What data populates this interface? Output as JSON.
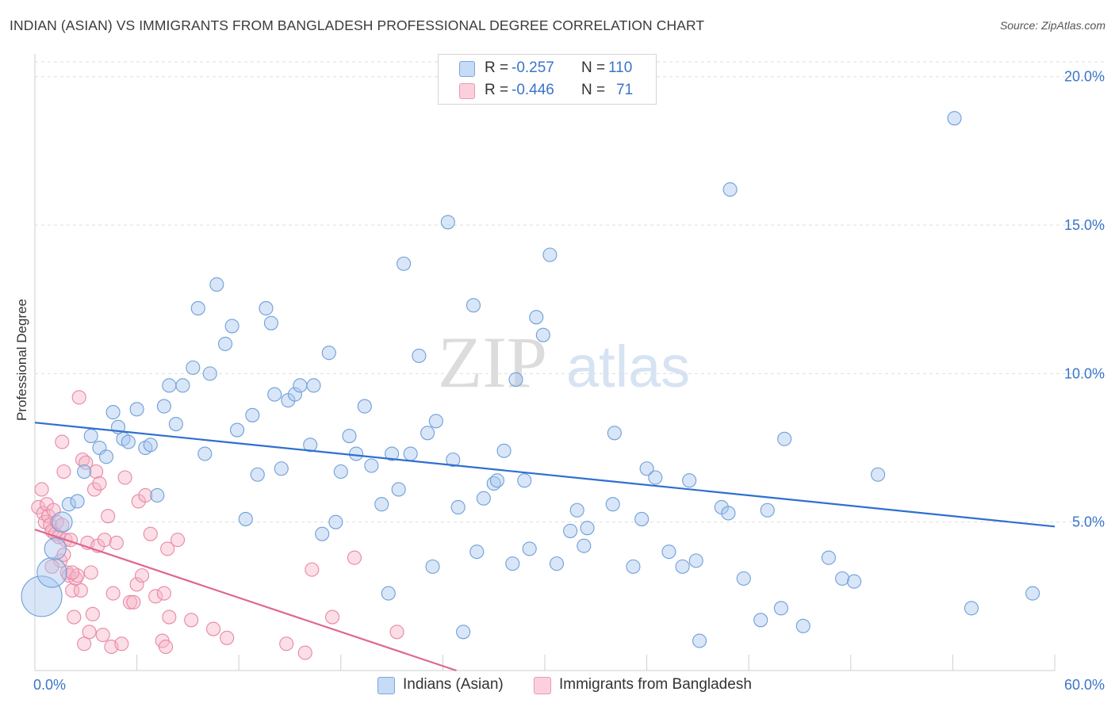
{
  "title": "INDIAN (ASIAN) VS IMMIGRANTS FROM BANGLADESH PROFESSIONAL DEGREE CORRELATION CHART",
  "source": "Source: ZipAtlas.com",
  "watermark": {
    "zip": "ZIP",
    "atlas": "atlas"
  },
  "legend": {
    "r_label": "R =",
    "n_label": "N =",
    "rows": [
      {
        "r": "-0.257",
        "n": "110",
        "color": "#a8c8f0"
      },
      {
        "r": "-0.446",
        "n": "71",
        "color": "#f7b6c8"
      }
    ]
  },
  "colors": {
    "blue_fill": "#a8c8f0",
    "blue_stroke": "#6f9fd8",
    "blue_line": "#2f6fd0",
    "pink_fill": "#f7b6c8",
    "pink_stroke": "#e888a6",
    "pink_line": "#e0678f",
    "tick_label": "#3a74c9"
  },
  "chart_data": {
    "type": "scatter",
    "title": "INDIAN (ASIAN) VS IMMIGRANTS FROM BANGLADESH PROFESSIONAL DEGREE CORRELATION CHART",
    "xlabel": "",
    "ylabel": "Professional Degree",
    "xlim": [
      0,
      60
    ],
    "ylim": [
      0,
      20.5
    ],
    "x_tick_labels": {
      "left": "0.0%",
      "right": "60.0%"
    },
    "y_ticks": [
      {
        "value": 5,
        "label": "5.0%"
      },
      {
        "value": 10,
        "label": "10.0%"
      },
      {
        "value": 15,
        "label": "15.0%"
      },
      {
        "value": 20,
        "label": "20.0%"
      }
    ],
    "grid": "horizontal dashed",
    "legend_position": "top-center",
    "series": [
      {
        "name": "Indians (Asian)",
        "r": -0.257,
        "n": 110,
        "trend": {
          "x": [
            0,
            60
          ],
          "y": [
            8.35,
            4.85
          ]
        },
        "points": [
          [
            0.4,
            2.5,
            3
          ],
          [
            1.0,
            3.3,
            2.2
          ],
          [
            1.2,
            4.1,
            1.6
          ],
          [
            1.6,
            5.0,
            1.5
          ],
          [
            2.0,
            5.6,
            1
          ],
          [
            2.5,
            5.7,
            1
          ],
          [
            2.9,
            6.7,
            1
          ],
          [
            3.3,
            7.9,
            1
          ],
          [
            3.8,
            7.5,
            1
          ],
          [
            4.2,
            7.2,
            1
          ],
          [
            4.6,
            8.7,
            1
          ],
          [
            4.9,
            8.2,
            1
          ],
          [
            5.2,
            7.8,
            1
          ],
          [
            5.5,
            7.7,
            1
          ],
          [
            6.0,
            8.8,
            1
          ],
          [
            6.5,
            7.5,
            1
          ],
          [
            6.8,
            7.6,
            1
          ],
          [
            7.2,
            5.9,
            1
          ],
          [
            7.6,
            8.9,
            1
          ],
          [
            7.9,
            9.6,
            1
          ],
          [
            8.3,
            8.3,
            1
          ],
          [
            8.7,
            9.6,
            1
          ],
          [
            9.3,
            10.2,
            1
          ],
          [
            9.6,
            12.2,
            1
          ],
          [
            10.0,
            7.3,
            1
          ],
          [
            10.3,
            10.0,
            1
          ],
          [
            10.7,
            13.0,
            1
          ],
          [
            11.2,
            11.0,
            1
          ],
          [
            11.6,
            11.6,
            1
          ],
          [
            11.9,
            8.1,
            1
          ],
          [
            12.4,
            5.1,
            1
          ],
          [
            12.8,
            8.6,
            1
          ],
          [
            13.1,
            6.6,
            1
          ],
          [
            13.6,
            12.2,
            1
          ],
          [
            13.9,
            11.7,
            1
          ],
          [
            14.1,
            9.3,
            1
          ],
          [
            14.5,
            6.8,
            1
          ],
          [
            14.9,
            9.1,
            1
          ],
          [
            15.3,
            9.3,
            1
          ],
          [
            15.6,
            9.6,
            1
          ],
          [
            16.2,
            7.6,
            1
          ],
          [
            16.4,
            9.6,
            1
          ],
          [
            16.9,
            4.6,
            1
          ],
          [
            17.3,
            10.7,
            1
          ],
          [
            17.7,
            5.0,
            1
          ],
          [
            18.0,
            6.7,
            1
          ],
          [
            18.5,
            7.9,
            1
          ],
          [
            18.9,
            7.3,
            1
          ],
          [
            19.4,
            8.9,
            1
          ],
          [
            19.8,
            6.9,
            1
          ],
          [
            20.4,
            5.6,
            1
          ],
          [
            20.8,
            2.6,
            1
          ],
          [
            21.0,
            7.3,
            1
          ],
          [
            21.4,
            6.1,
            1
          ],
          [
            21.7,
            13.7,
            1
          ],
          [
            22.1,
            7.3,
            1
          ],
          [
            22.6,
            10.6,
            1
          ],
          [
            23.1,
            8.0,
            1
          ],
          [
            23.4,
            3.5,
            1
          ],
          [
            23.6,
            8.4,
            1
          ],
          [
            24.3,
            15.1,
            1
          ],
          [
            24.6,
            7.1,
            1
          ],
          [
            24.9,
            5.5,
            1
          ],
          [
            25.2,
            1.3,
            1
          ],
          [
            25.8,
            12.3,
            1
          ],
          [
            26.0,
            4.0,
            1
          ],
          [
            26.4,
            5.8,
            1
          ],
          [
            27.0,
            6.3,
            1
          ],
          [
            27.2,
            6.4,
            1
          ],
          [
            27.6,
            7.4,
            1
          ],
          [
            28.3,
            9.8,
            1
          ],
          [
            28.1,
            3.6,
            1
          ],
          [
            28.8,
            6.4,
            1
          ],
          [
            29.1,
            4.1,
            1
          ],
          [
            29.5,
            11.9,
            1
          ],
          [
            29.9,
            11.3,
            1
          ],
          [
            30.3,
            14.0,
            1
          ],
          [
            30.7,
            3.6,
            1
          ],
          [
            31.5,
            4.7,
            1
          ],
          [
            31.9,
            5.4,
            1
          ],
          [
            32.3,
            4.2,
            1
          ],
          [
            32.5,
            4.8,
            1
          ],
          [
            34.0,
            5.6,
            1
          ],
          [
            34.1,
            8.0,
            1
          ],
          [
            35.2,
            3.5,
            1
          ],
          [
            35.7,
            5.1,
            1
          ],
          [
            36.0,
            6.8,
            1
          ],
          [
            36.5,
            6.5,
            1
          ],
          [
            37.3,
            4.0,
            1
          ],
          [
            38.1,
            3.5,
            1
          ],
          [
            38.5,
            6.4,
            1
          ],
          [
            38.9,
            3.7,
            1
          ],
          [
            39.1,
            1.0,
            1
          ],
          [
            40.4,
            5.5,
            1
          ],
          [
            40.8,
            5.3,
            1
          ],
          [
            40.9,
            16.2,
            1
          ],
          [
            41.7,
            3.1,
            1
          ],
          [
            42.7,
            1.7,
            1
          ],
          [
            43.1,
            5.4,
            1
          ],
          [
            43.9,
            2.1,
            1
          ],
          [
            44.1,
            7.8,
            1
          ],
          [
            45.2,
            1.5,
            1
          ],
          [
            46.7,
            3.8,
            1
          ],
          [
            47.5,
            3.1,
            1
          ],
          [
            48.2,
            3.0,
            1
          ],
          [
            49.6,
            6.6,
            1
          ],
          [
            54.1,
            18.6,
            1
          ],
          [
            55.1,
            2.1,
            1
          ],
          [
            58.7,
            2.6,
            1
          ]
        ]
      },
      {
        "name": "Immigrants from Bangladesh",
        "r": -0.446,
        "n": 71,
        "trend": {
          "x": [
            0,
            24.8
          ],
          "y": [
            4.75,
            0
          ]
        },
        "points": [
          [
            0.2,
            5.5,
            1
          ],
          [
            0.4,
            6.1,
            1
          ],
          [
            0.5,
            5.3,
            1
          ],
          [
            0.6,
            5.0,
            1
          ],
          [
            0.7,
            5.6,
            1
          ],
          [
            0.8,
            5.2,
            1
          ],
          [
            0.9,
            4.9,
            1
          ],
          [
            1.0,
            4.7,
            1
          ],
          [
            1.1,
            5.4,
            1
          ],
          [
            1.2,
            4.6,
            1
          ],
          [
            1.3,
            5.0,
            1
          ],
          [
            1.4,
            4.5,
            1
          ],
          [
            1.5,
            3.7,
            1
          ],
          [
            1.6,
            4.9,
            1
          ],
          [
            1.7,
            3.9,
            1
          ],
          [
            1.8,
            4.4,
            1
          ],
          [
            1.6,
            7.7,
            1
          ],
          [
            1.7,
            6.7,
            1
          ],
          [
            1.9,
            3.3,
            1
          ],
          [
            2.0,
            3.2,
            1
          ],
          [
            2.1,
            4.4,
            1
          ],
          [
            2.2,
            2.7,
            1
          ],
          [
            2.3,
            1.8,
            1
          ],
          [
            2.4,
            3.1,
            1
          ],
          [
            2.5,
            3.2,
            1
          ],
          [
            2.6,
            9.2,
            1
          ],
          [
            2.7,
            2.7,
            1
          ],
          [
            2.8,
            7.1,
            1
          ],
          [
            2.9,
            0.9,
            1
          ],
          [
            3.0,
            7.0,
            1
          ],
          [
            3.1,
            4.3,
            1
          ],
          [
            3.2,
            1.3,
            1
          ],
          [
            3.3,
            3.3,
            1
          ],
          [
            3.4,
            1.9,
            1
          ],
          [
            3.5,
            6.1,
            1
          ],
          [
            3.6,
            6.7,
            1
          ],
          [
            3.7,
            4.2,
            1
          ],
          [
            3.8,
            6.3,
            1
          ],
          [
            4.0,
            1.2,
            1
          ],
          [
            4.1,
            4.4,
            1
          ],
          [
            4.3,
            5.2,
            1
          ],
          [
            4.5,
            0.8,
            1
          ],
          [
            4.6,
            2.6,
            1
          ],
          [
            4.8,
            4.3,
            1
          ],
          [
            5.1,
            0.9,
            1
          ],
          [
            5.3,
            6.5,
            1
          ],
          [
            5.6,
            2.3,
            1
          ],
          [
            5.8,
            2.3,
            1
          ],
          [
            6.0,
            2.9,
            1
          ],
          [
            6.1,
            5.7,
            1
          ],
          [
            6.3,
            3.2,
            1
          ],
          [
            6.5,
            5.9,
            1
          ],
          [
            6.8,
            4.6,
            1
          ],
          [
            7.1,
            2.5,
            1
          ],
          [
            7.5,
            1.0,
            1
          ],
          [
            7.6,
            2.6,
            1
          ],
          [
            7.7,
            0.8,
            1
          ],
          [
            7.8,
            4.1,
            1
          ],
          [
            7.9,
            1.8,
            1
          ],
          [
            8.4,
            4.4,
            1
          ],
          [
            9.2,
            1.7,
            1
          ],
          [
            10.5,
            1.4,
            1
          ],
          [
            11.3,
            1.1,
            1
          ],
          [
            14.8,
            0.9,
            1
          ],
          [
            15.9,
            0.6,
            1
          ],
          [
            16.3,
            3.4,
            1
          ],
          [
            17.5,
            1.8,
            1
          ],
          [
            18.8,
            3.8,
            1
          ],
          [
            21.3,
            1.3,
            1
          ],
          [
            1.0,
            3.5,
            1
          ],
          [
            2.2,
            3.3,
            1
          ]
        ]
      }
    ]
  },
  "bottom_legend": [
    {
      "label": "Indians (Asian)",
      "color": "#a8c8f0"
    },
    {
      "label": "Immigrants from Bangladesh",
      "color": "#f7b6c8"
    }
  ]
}
